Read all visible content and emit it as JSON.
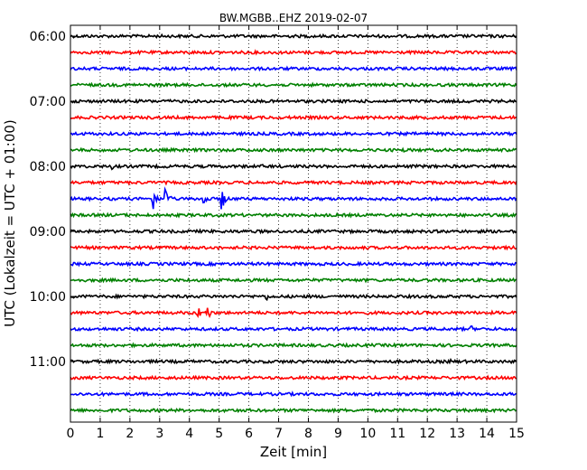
{
  "chart_data": {
    "type": "line",
    "title": "BW.MGBB..EHZ 2019-02-07",
    "xlabel": "Zeit  [min]",
    "ylabel": "UTC (Lokalzeit = UTC + 01:00)",
    "xlim": [
      0,
      15
    ],
    "x_ticks": [
      "0",
      "1",
      "2",
      "3",
      "4",
      "5",
      "6",
      "7",
      "8",
      "9",
      "10",
      "11",
      "12",
      "13",
      "14",
      "15"
    ],
    "y_tick_labels": [
      "06:00",
      "07:00",
      "08:00",
      "09:00",
      "10:00",
      "11:00"
    ],
    "grid_vertical": true,
    "trace_interval_minutes": 15,
    "trace_colors": [
      "#000000",
      "#ff0000",
      "#0000ff",
      "#008000"
    ],
    "traces": [
      {
        "start": "06:00",
        "color": "#000000",
        "events": []
      },
      {
        "start": "06:15",
        "color": "#ff0000",
        "events": []
      },
      {
        "start": "06:30",
        "color": "#0000ff",
        "events": []
      },
      {
        "start": "06:45",
        "color": "#008000",
        "events": []
      },
      {
        "start": "07:00",
        "color": "#000000",
        "events": []
      },
      {
        "start": "07:15",
        "color": "#ff0000",
        "events": []
      },
      {
        "start": "07:30",
        "color": "#0000ff",
        "events": []
      },
      {
        "start": "07:45",
        "color": "#008000",
        "events": [
          {
            "t": 11.2,
            "amp": 0.2
          }
        ]
      },
      {
        "start": "08:00",
        "color": "#000000",
        "events": [
          {
            "t": 1.4,
            "amp": 0.25
          },
          {
            "t": 3.2,
            "amp": 0.2
          },
          {
            "t": 6.5,
            "amp": 0.15
          }
        ]
      },
      {
        "start": "08:15",
        "color": "#ff0000",
        "events": []
      },
      {
        "start": "08:30",
        "color": "#0000ff",
        "events": [
          {
            "t": 2.8,
            "amp": 0.9
          },
          {
            "t": 3.2,
            "amp": 1.0
          },
          {
            "t": 4.5,
            "amp": 0.7
          },
          {
            "t": 5.1,
            "amp": 0.9
          }
        ]
      },
      {
        "start": "08:45",
        "color": "#008000",
        "events": []
      },
      {
        "start": "09:00",
        "color": "#000000",
        "events": []
      },
      {
        "start": "09:15",
        "color": "#ff0000",
        "events": []
      },
      {
        "start": "09:30",
        "color": "#0000ff",
        "events": []
      },
      {
        "start": "09:45",
        "color": "#008000",
        "events": []
      },
      {
        "start": "10:00",
        "color": "#000000",
        "events": [
          {
            "t": 6.6,
            "amp": 0.3
          }
        ]
      },
      {
        "start": "10:15",
        "color": "#ff0000",
        "events": [
          {
            "t": 4.3,
            "amp": 0.5
          },
          {
            "t": 4.6,
            "amp": 0.7
          }
        ]
      },
      {
        "start": "10:30",
        "color": "#0000ff",
        "events": [
          {
            "t": 13.5,
            "amp": 0.25
          }
        ]
      },
      {
        "start": "10:45",
        "color": "#008000",
        "events": [
          {
            "t": 9.2,
            "amp": 0.15
          }
        ]
      },
      {
        "start": "11:00",
        "color": "#000000",
        "events": [
          {
            "t": 12.8,
            "amp": 0.3
          },
          {
            "t": 14.2,
            "amp": 0.1
          }
        ]
      },
      {
        "start": "11:15",
        "color": "#ff0000",
        "events": []
      },
      {
        "start": "11:30",
        "color": "#0000ff",
        "events": []
      },
      {
        "start": "11:45",
        "color": "#008000",
        "events": []
      }
    ]
  }
}
